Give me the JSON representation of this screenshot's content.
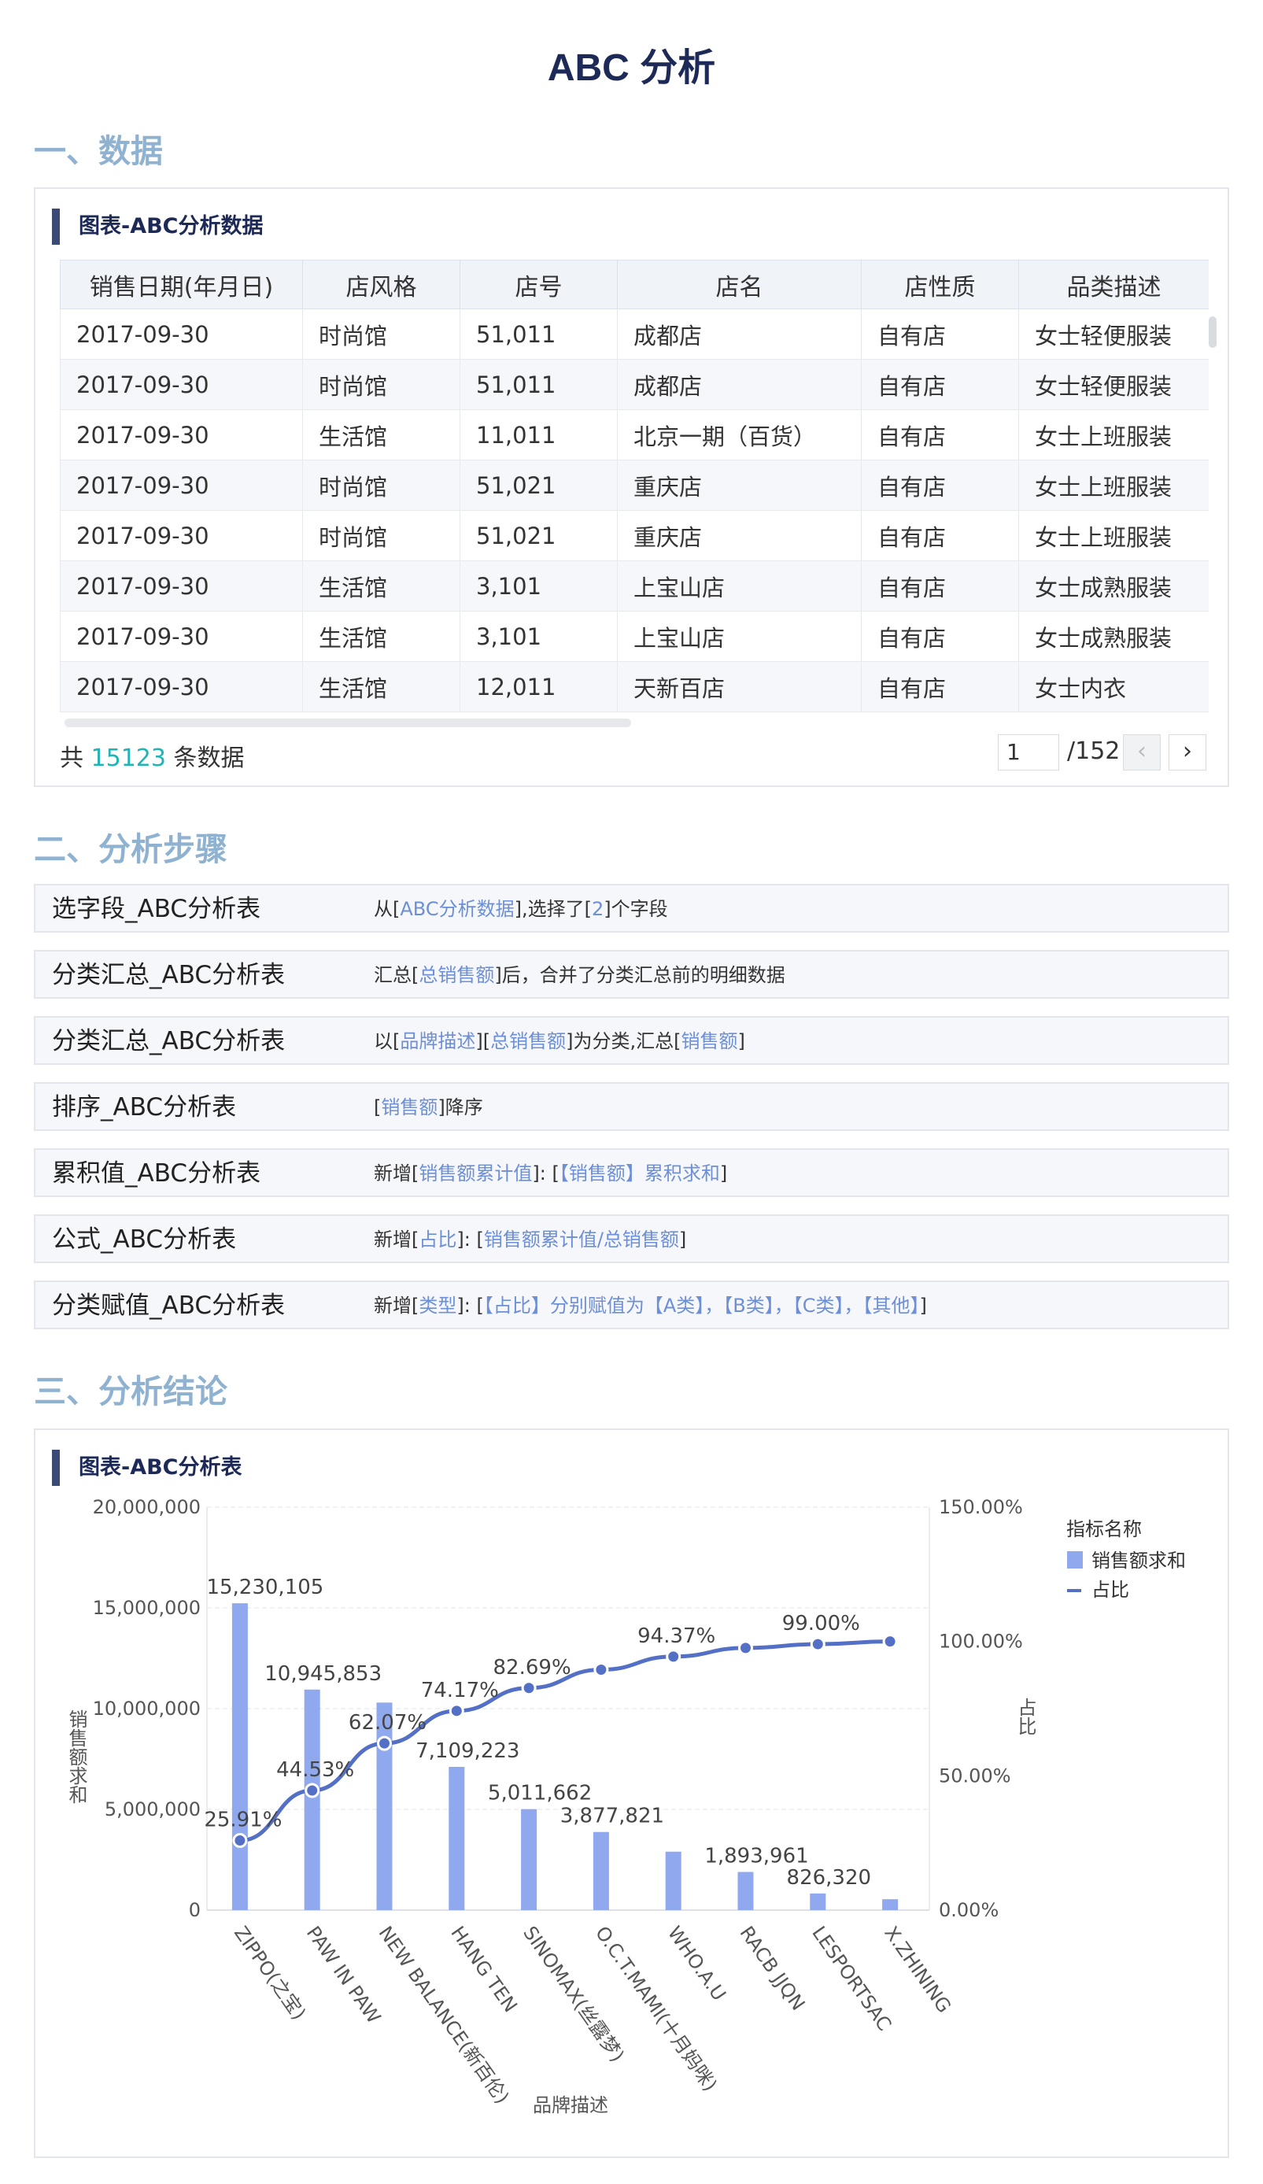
{
  "page_title": "ABC 分析",
  "sections": {
    "data": "一、数据",
    "steps": "二、分析步骤",
    "conclusion": "三、分析结论"
  },
  "data_card": {
    "title": "图表-ABC分析数据",
    "columns": [
      "销售日期(年月日)",
      "店风格",
      "店号",
      "店名",
      "店性质",
      "品类描述"
    ],
    "rows": [
      [
        "2017-09-30",
        "时尚馆",
        "51,011",
        "成都店",
        "自有店",
        "女士轻便服装"
      ],
      [
        "2017-09-30",
        "时尚馆",
        "51,011",
        "成都店",
        "自有店",
        "女士轻便服装"
      ],
      [
        "2017-09-30",
        "生活馆",
        "11,011",
        "北京一期（百货）",
        "自有店",
        "女士上班服装"
      ],
      [
        "2017-09-30",
        "时尚馆",
        "51,021",
        "重庆店",
        "自有店",
        "女士上班服装"
      ],
      [
        "2017-09-30",
        "时尚馆",
        "51,021",
        "重庆店",
        "自有店",
        "女士上班服装"
      ],
      [
        "2017-09-30",
        "生活馆",
        "3,101",
        "上宝山店",
        "自有店",
        "女士成熟服装"
      ],
      [
        "2017-09-30",
        "生活馆",
        "3,101",
        "上宝山店",
        "自有店",
        "女士成熟服装"
      ],
      [
        "2017-09-30",
        "生活馆",
        "12,011",
        "天新百店",
        "自有店",
        "女士内衣"
      ]
    ],
    "total_prefix": "共",
    "total_count": "15123",
    "total_suffix": "条数据",
    "current_page": "1",
    "total_pages": "/152",
    "prev_icon": "‹",
    "next_icon": "›"
  },
  "steps": [
    {
      "name": "选字段_ABC分析表",
      "desc": [
        [
          "从[",
          0
        ],
        [
          "ABC分析数据",
          1
        ],
        [
          "],选择了[",
          0
        ],
        [
          "2",
          1
        ],
        [
          "]个字段",
          0
        ]
      ]
    },
    {
      "name": "分类汇总_ABC分析表",
      "desc": [
        [
          "汇总[",
          0
        ],
        [
          "总销售额",
          1
        ],
        [
          "]后，合并了分类汇总前的明细数据",
          0
        ]
      ]
    },
    {
      "name": "分类汇总_ABC分析表",
      "desc": [
        [
          "以[",
          0
        ],
        [
          "品牌描述",
          1
        ],
        [
          "][",
          0
        ],
        [
          "总销售额",
          1
        ],
        [
          "]为分类,汇总[",
          0
        ],
        [
          "销售额",
          1
        ],
        [
          "]",
          0
        ]
      ]
    },
    {
      "name": "排序_ABC分析表",
      "desc": [
        [
          "[",
          0
        ],
        [
          "销售额",
          1
        ],
        [
          "]降序",
          0
        ]
      ]
    },
    {
      "name": "累积值_ABC分析表",
      "desc": [
        [
          "新增[",
          0
        ],
        [
          "销售额累计值",
          1
        ],
        [
          "]: [",
          0
        ],
        [
          "【销售额】累积求和",
          1
        ],
        [
          "]",
          0
        ]
      ]
    },
    {
      "name": "公式_ABC分析表",
      "desc": [
        [
          "新增[",
          0
        ],
        [
          "占比",
          1
        ],
        [
          "]: [",
          0
        ],
        [
          "销售额累计值/总销售额",
          1
        ],
        [
          "]",
          0
        ]
      ]
    },
    {
      "name": "分类赋值_ABC分析表",
      "desc": [
        [
          "新增[",
          0
        ],
        [
          "类型",
          1
        ],
        [
          "]: [",
          0
        ],
        [
          "【占比】分别赋值为【A类】，【B类】，【C类】，【其他】",
          1
        ],
        [
          "]",
          0
        ]
      ]
    }
  ],
  "chart_card": {
    "title": "图表-ABC分析表"
  },
  "chart_data": {
    "type": "bar",
    "categories": [
      "ZIPPO(之宝)",
      "PAW IN PAW",
      "NEW BALANCE(新百伦)",
      "HANG TEN",
      "SINOMAX(丝露梦)",
      "O.C.T.MAMI(十月妈咪)",
      "WHO.A.U",
      "RACB JJQN",
      "LESPORTSAC",
      "X.ZHINING"
    ],
    "series": [
      {
        "name": "销售额求和",
        "type": "bar",
        "axis": "left",
        "color": "#8fa8ee",
        "values": [
          15230105,
          10945853,
          10300000,
          7109223,
          5011662,
          3877821,
          2900000,
          1893961,
          826320,
          540000
        ],
        "labels": [
          "15,230,105",
          "10,945,853",
          "",
          "7,109,223",
          "5,011,662",
          "3,877,821",
          "",
          "1,893,961",
          "826,320",
          ""
        ]
      },
      {
        "name": "占比",
        "type": "line",
        "axis": "right",
        "color": "#5470c6",
        "values": [
          25.91,
          44.53,
          62.07,
          74.17,
          82.69,
          89.5,
          94.37,
          97.6,
          99.0,
          100.0
        ],
        "labels": [
          "25.91%",
          "44.53%",
          "62.07%",
          "74.17%",
          "82.69%",
          "",
          "94.37%",
          "",
          "99.00%",
          ""
        ]
      }
    ],
    "xlabel": "品牌描述",
    "ylabel": "销售额求和",
    "y2label": "占比",
    "ylim": [
      0,
      20000000
    ],
    "y_ticks": [
      "0",
      "5,000,000",
      "10,000,000",
      "15,000,000",
      "20,000,000"
    ],
    "y2lim": [
      0,
      150
    ],
    "y2_ticks": [
      "0.00%",
      "50.00%",
      "100.00%",
      "150.00%"
    ],
    "legend_title": "指标名称",
    "legend_position": "top-right",
    "grid": true
  }
}
